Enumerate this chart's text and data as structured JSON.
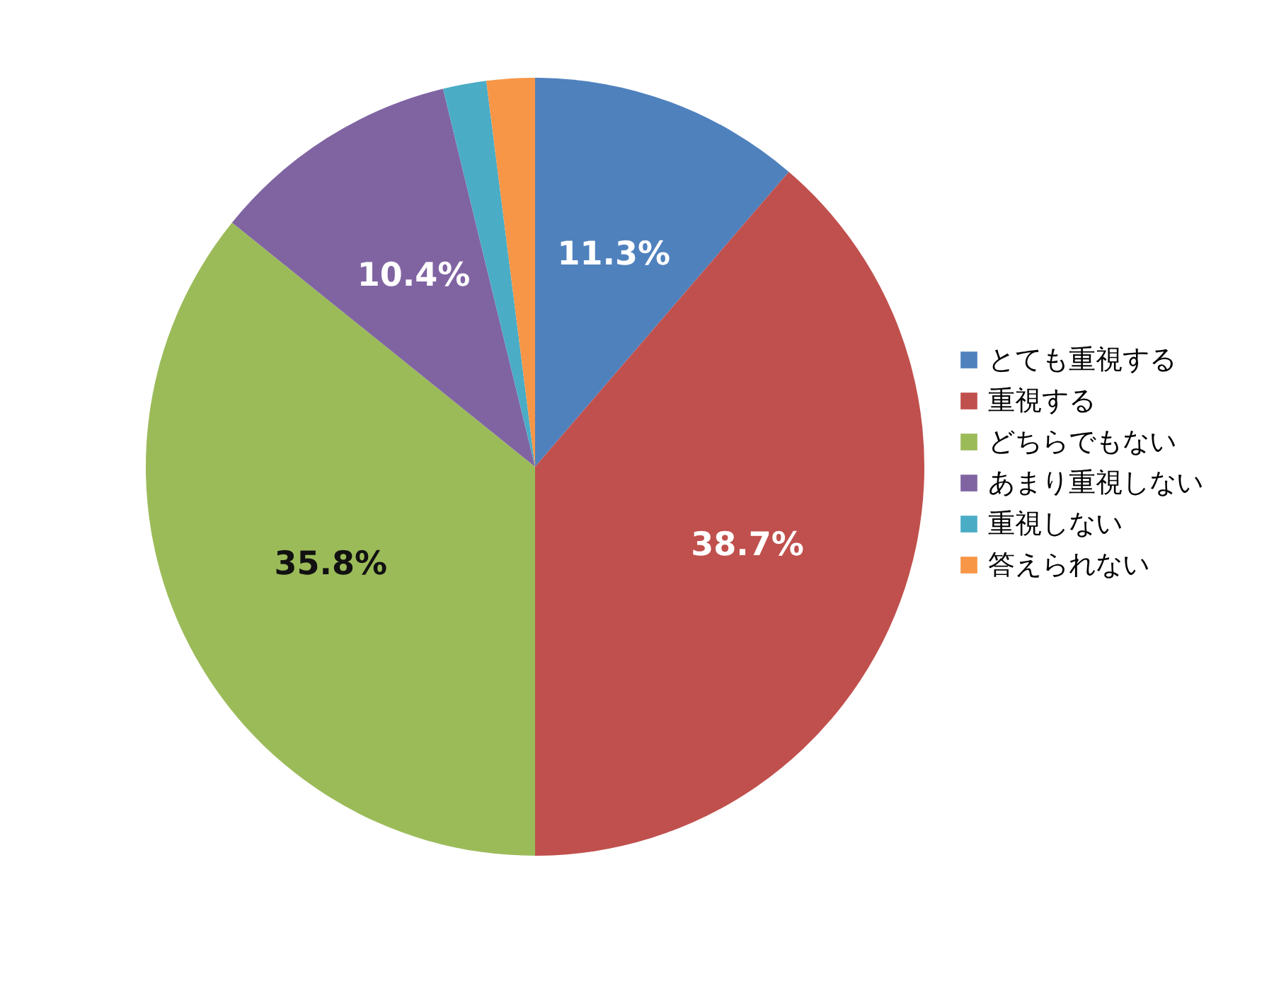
{
  "chart_data": {
    "type": "pie",
    "categories": [
      "とても重視する",
      "重視する",
      "どちらでもない",
      "あまり重視しない",
      "重視しない",
      "答えられない"
    ],
    "values": [
      11.3,
      38.7,
      35.8,
      10.4,
      1.8,
      2.0
    ],
    "colors": [
      "#4f81bd",
      "#c0504d",
      "#9bbb59",
      "#8064a2",
      "#4bacc6",
      "#f79646"
    ],
    "value_labels": [
      "11.3%",
      "38.7%",
      "35.8%",
      "10.4%",
      null,
      null
    ],
    "legend": "right"
  }
}
